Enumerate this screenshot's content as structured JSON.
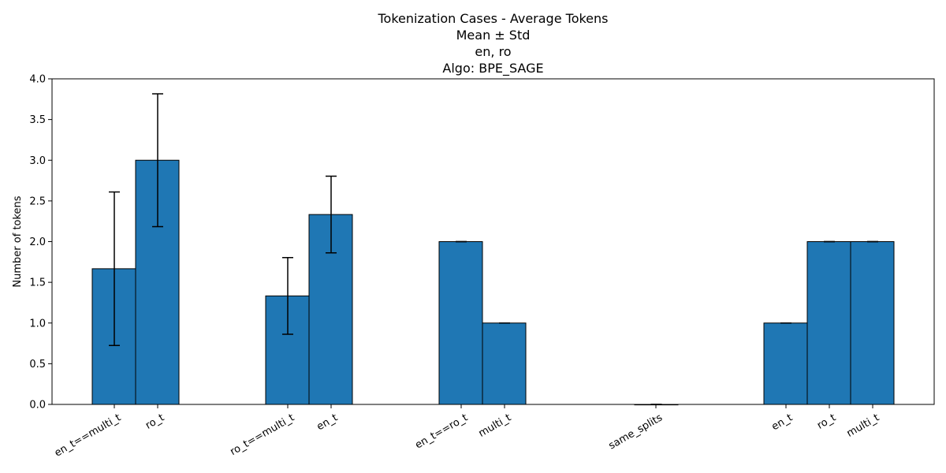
{
  "chart_data": {
    "type": "bar",
    "title_lines": [
      "Tokenization Cases - Average Tokens",
      "Mean ± Std",
      "en, ro",
      "Algo: BPE_SAGE"
    ],
    "xlabel": "",
    "ylabel": "Number of tokens",
    "ylim": [
      0,
      4.0
    ],
    "yticks": [
      "0.0",
      "0.5",
      "1.0",
      "1.5",
      "2.0",
      "2.5",
      "3.0",
      "3.5",
      "4.0"
    ],
    "grid": false,
    "bar_color": "#1f77b4",
    "groups": [
      {
        "bars": [
          {
            "label": "en_t==multi_t",
            "value": 1.667,
            "std": 0.943
          },
          {
            "label": "ro_t",
            "value": 3.0,
            "std": 0.816
          }
        ]
      },
      {
        "bars": [
          {
            "label": "ro_t==multi_t",
            "value": 1.333,
            "std": 0.471
          },
          {
            "label": "en_t",
            "value": 2.333,
            "std": 0.471
          }
        ]
      },
      {
        "bars": [
          {
            "label": "en_t==ro_t",
            "value": 2.0,
            "std": 0.0
          },
          {
            "label": "multi_t",
            "value": 1.0,
            "std": 0.0
          }
        ]
      },
      {
        "bars": [
          {
            "label": "same_splits",
            "value": 0.0,
            "std": 0.0
          }
        ]
      },
      {
        "bars": [
          {
            "label": "en_t",
            "value": 1.0,
            "std": 0.0
          },
          {
            "label": "ro_t",
            "value": 2.0,
            "std": 0.0
          },
          {
            "label": "multi_t",
            "value": 2.0,
            "std": 0.0
          }
        ]
      }
    ]
  }
}
